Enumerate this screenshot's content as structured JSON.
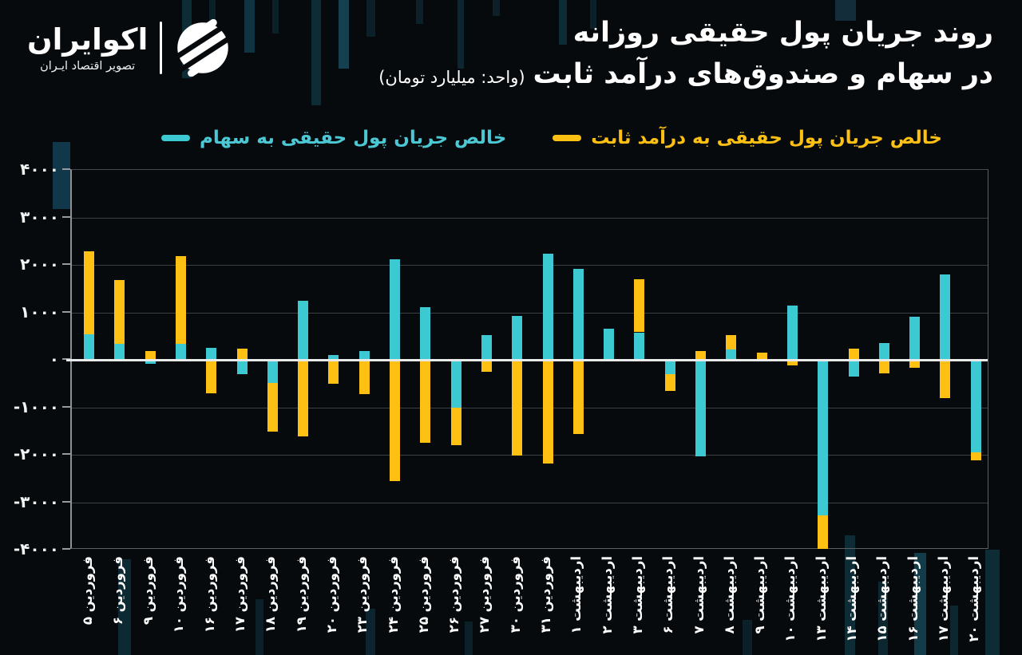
{
  "brand": {
    "name": "اکوایران",
    "tagline": "تصویر اقتصاد ایـران"
  },
  "title": {
    "line1": "روند جریان پول حقیقی روزانه",
    "line2": "در سهام و صندوق‌های درآمد ثابت",
    "unit": "(واحد: میلیارد تومان)"
  },
  "legend": {
    "stocks_label": "خالص جریان پول حقیقی به سهام",
    "fixed_income_label": "خالص جریان پول حقیقی به درآمد ثابت"
  },
  "colors": {
    "stocks": "#3cc9d2",
    "fixed_income": "#fdc013",
    "stocks_text": "#4cc8d4",
    "fixed_income_text": "#fdc013",
    "background": "#060a0d",
    "zero_line": "#e9eaea",
    "gridline": "#3a4045"
  },
  "chart_data": {
    "type": "bar",
    "stacked": true,
    "title": "روند جریان پول حقیقی روزانه در سهام و صندوق‌های درآمد ثابت",
    "unit": "میلیارد تومان",
    "legend_position": "top",
    "grid": true,
    "ylim": [
      -4000,
      4000
    ],
    "ytick_values": [
      4000,
      3000,
      2000,
      1000,
      0,
      -1000,
      -2000,
      -3000,
      -4000
    ],
    "ytick_labels": [
      "۴۰۰۰",
      "۳۰۰۰",
      "۲۰۰۰",
      "۱۰۰۰",
      "۰",
      "-۱۰۰۰",
      "-۲۰۰۰",
      "-۳۰۰۰",
      "-۴۰۰۰"
    ],
    "categories": [
      "فروردین ۵",
      "فروردین ۶",
      "فروردین ۹",
      "فروردین ۱۰",
      "فروردین ۱۶",
      "فروردین ۱۷",
      "فروردین ۱۸",
      "فروردین ۱۹",
      "فروردین ۲۰",
      "فروردین ۲۳",
      "فروردین ۲۴",
      "فروردین ۲۵",
      "فروردین ۲۶",
      "فروردین ۲۷",
      "فروردین ۳۰",
      "فروردین ۳۱",
      "اردیبهشت ۱",
      "اردیبهشت ۲",
      "اردیبهشت ۳",
      "اردیبهشت ۶",
      "اردیبهشت ۷",
      "اردیبهشت ۸",
      "اردیبهشت ۹",
      "اردیبهشت ۱۰",
      "اردیبهشت ۱۳",
      "اردیبهشت ۱۴",
      "اردیبهشت ۱۵",
      "اردیبهشت ۱۶",
      "اردیبهشت ۱۷",
      "اردیبهشت ۲۰"
    ],
    "series": [
      {
        "name": "خالص جریان پول حقیقی به سهام",
        "color": "#3cc9d2",
        "values": [
          540,
          340,
          -90,
          340,
          250,
          -310,
          -490,
          1240,
          100,
          190,
          2120,
          1110,
          -1010,
          530,
          920,
          2230,
          1920,
          660,
          580,
          -300,
          -2040,
          220,
          0,
          1150,
          -3280,
          -360,
          350,
          900,
          1800,
          -1950
        ]
      },
      {
        "name": "خالص جریان پول حقیقی به درآمد ثابت",
        "color": "#fdc013",
        "values": [
          1750,
          1340,
          185,
          1850,
          -700,
          230,
          -1020,
          -1620,
          -500,
          -720,
          -2550,
          -1740,
          -790,
          -250,
          -2020,
          -2190,
          -1560,
          0,
          1120,
          -350,
          180,
          300,
          150,
          -120,
          -700,
          240,
          -280,
          -160,
          -810,
          -160
        ]
      }
    ]
  }
}
